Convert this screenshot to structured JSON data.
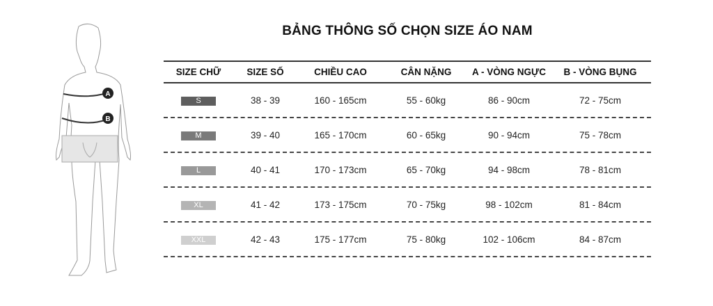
{
  "title": "BẢNG THÔNG SỐ CHỌN SIZE ÁO NAM",
  "figure": {
    "marker_a": "A",
    "marker_b": "B"
  },
  "table": {
    "headers": [
      "SIZE CHỮ",
      "SIZE SỐ",
      "CHIỀU CAO",
      "CÂN NẶNG",
      "A - VÒNG NGỰC",
      "B - VÒNG BỤNG"
    ],
    "rows": [
      {
        "size": "S",
        "badge_color": "#5e5e5e",
        "cells": [
          "38 - 39",
          "160 - 165cm",
          "55 - 60kg",
          "86 - 90cm",
          "72 - 75cm"
        ]
      },
      {
        "size": "M",
        "badge_color": "#7a7a7a",
        "cells": [
          "39 - 40",
          "165 - 170cm",
          "60 - 65kg",
          "90 - 94cm",
          "75 - 78cm"
        ]
      },
      {
        "size": "L",
        "badge_color": "#999999",
        "cells": [
          "40 - 41",
          "170 - 173cm",
          "65 - 70kg",
          "94 - 98cm",
          "78 - 81cm"
        ]
      },
      {
        "size": "XL",
        "badge_color": "#b4b4b4",
        "cells": [
          "41 - 42",
          "173 - 175cm",
          "70 - 75kg",
          "98 - 102cm",
          "81 - 84cm"
        ]
      },
      {
        "size": "XXL",
        "badge_color": "#cfcfcf",
        "cells": [
          "42 - 43",
          "175 - 177cm",
          "75 - 80kg",
          "102 - 106cm",
          "84 - 87cm"
        ]
      }
    ]
  }
}
